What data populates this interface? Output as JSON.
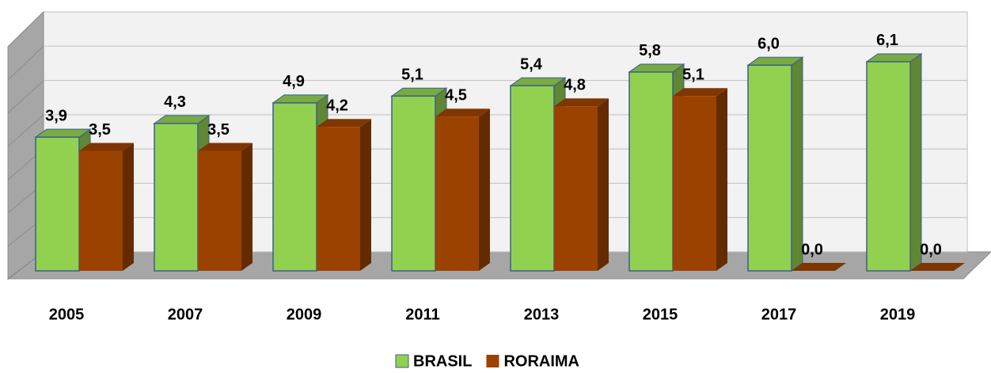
{
  "chart_data": {
    "type": "bar3d",
    "categories": [
      "2005",
      "2007",
      "2009",
      "2011",
      "2013",
      "2015",
      "2017",
      "2019"
    ],
    "series": [
      {
        "name": "BRASIL",
        "color": "#92d050",
        "values": [
          3.9,
          4.3,
          4.9,
          5.1,
          5.4,
          5.8,
          6.0,
          6.1
        ],
        "value_labels": [
          "3,9",
          "4,3",
          "4,9",
          "5,1",
          "5,4",
          "5,8",
          "6,0",
          "6,1"
        ]
      },
      {
        "name": "RORAIMA",
        "color": "#9c4200",
        "values": [
          3.5,
          3.5,
          4.2,
          4.5,
          4.8,
          5.1,
          0.0,
          0.0
        ],
        "value_labels": [
          "3,5",
          "3,5",
          "4,2",
          "4,5",
          "4,8",
          "5,1",
          "0,0",
          "0,0"
        ]
      }
    ],
    "ylim": [
      0,
      7
    ],
    "yticks": [
      0,
      1,
      2,
      3,
      4,
      5,
      6,
      7
    ],
    "grid": true,
    "legend": "bottom"
  }
}
